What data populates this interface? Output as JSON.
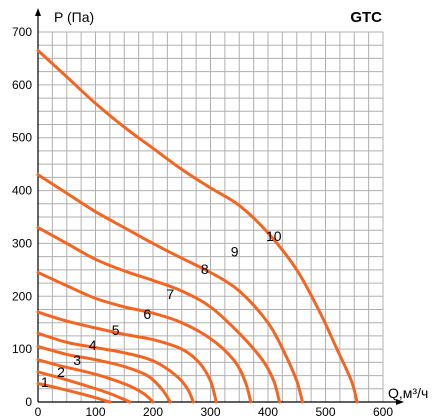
{
  "chart_data": {
    "type": "line",
    "title": "GTC",
    "xlabel": "Q,м³/ч",
    "ylabel": "P (Па)",
    "xlim": [
      0,
      600
    ],
    "ylim": [
      0,
      700
    ],
    "xticks": [
      0,
      100,
      200,
      300,
      400,
      500,
      600
    ],
    "yticks": [
      0,
      100,
      200,
      300,
      400,
      500,
      600,
      700
    ],
    "grid": true,
    "line_color": "#f26522",
    "series": [
      {
        "name": "1",
        "x": [
          0,
          40,
          80,
          110,
          125
        ],
        "y": [
          35,
          25,
          14,
          5,
          0
        ]
      },
      {
        "name": "2",
        "x": [
          0,
          40,
          80,
          120,
          145,
          160
        ],
        "y": [
          57,
          45,
          32,
          18,
          7,
          0
        ]
      },
      {
        "name": "3",
        "x": [
          0,
          40,
          80,
          120,
          160,
          185,
          200
        ],
        "y": [
          80,
          68,
          58,
          46,
          30,
          15,
          0
        ]
      },
      {
        "name": "4",
        "x": [
          0,
          50,
          100,
          150,
          190,
          215,
          230
        ],
        "y": [
          105,
          90,
          80,
          67,
          50,
          25,
          0
        ]
      },
      {
        "name": "5",
        "x": [
          0,
          50,
          100,
          150,
          200,
          240,
          260,
          270
        ],
        "y": [
          130,
          113,
          103,
          93,
          78,
          50,
          25,
          0
        ]
      },
      {
        "name": "6",
        "x": [
          0,
          50,
          100,
          150,
          200,
          250,
          280,
          300,
          310
        ],
        "y": [
          170,
          153,
          140,
          128,
          118,
          100,
          75,
          40,
          0
        ]
      },
      {
        "name": "7",
        "x": [
          0,
          50,
          100,
          150,
          200,
          250,
          300,
          340,
          360,
          370
        ],
        "y": [
          245,
          220,
          196,
          180,
          168,
          150,
          120,
          80,
          40,
          0
        ]
      },
      {
        "name": "8",
        "x": [
          0,
          50,
          100,
          150,
          200,
          250,
          300,
          350,
          390,
          410,
          420
        ],
        "y": [
          330,
          300,
          270,
          248,
          230,
          210,
          180,
          130,
          80,
          40,
          0
        ]
      },
      {
        "name": "9",
        "x": [
          0,
          50,
          100,
          150,
          200,
          250,
          300,
          350,
          400,
          430,
          450,
          460
        ],
        "y": [
          430,
          395,
          360,
          330,
          300,
          272,
          245,
          210,
          150,
          90,
          40,
          0
        ]
      },
      {
        "name": "10",
        "x": [
          0,
          50,
          100,
          150,
          200,
          250,
          300,
          350,
          400,
          450,
          490,
          520,
          545,
          555
        ],
        "y": [
          665,
          615,
          565,
          520,
          480,
          440,
          405,
          372,
          320,
          250,
          170,
          100,
          40,
          0
        ]
      }
    ],
    "curve_labels": [
      {
        "text": "1",
        "x": 12,
        "y": 28
      },
      {
        "text": "2",
        "x": 40,
        "y": 47
      },
      {
        "text": "3",
        "x": 68,
        "y": 70
      },
      {
        "text": "4",
        "x": 95,
        "y": 98
      },
      {
        "text": "5",
        "x": 135,
        "y": 127
      },
      {
        "text": "6",
        "x": 190,
        "y": 157
      },
      {
        "text": "7",
        "x": 230,
        "y": 195
      },
      {
        "text": "8",
        "x": 290,
        "y": 242
      },
      {
        "text": "9",
        "x": 342,
        "y": 275
      },
      {
        "text": "10",
        "x": 410,
        "y": 305
      }
    ]
  }
}
